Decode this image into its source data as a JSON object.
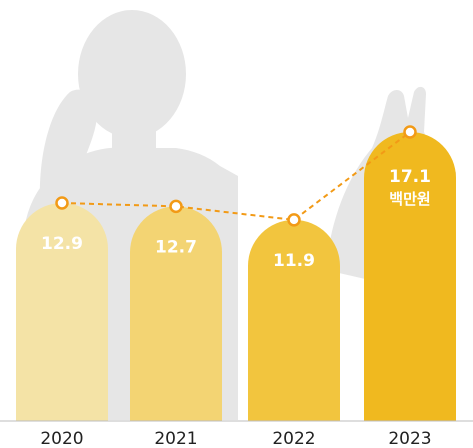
{
  "chart_data": {
    "type": "bar",
    "categories": [
      "2020",
      "2021",
      "2022",
      "2023"
    ],
    "values": [
      12.9,
      12.7,
      11.9,
      17.1
    ],
    "value_labels": [
      "12.9",
      "12.7",
      "11.9",
      "17.1"
    ],
    "unit_label": "백만원",
    "unit_label_on_category": "2023",
    "overlay": "line-with-markers",
    "ylim": [
      0,
      18
    ],
    "grid": false,
    "legend": "none",
    "title": "",
    "xlabel": "",
    "ylabel": ""
  },
  "colors": {
    "bars": [
      "#f4e3a6",
      "#f3d473",
      "#f2c53e",
      "#f0b91f"
    ],
    "line": "#f29a16",
    "marker_fill": "#ffffff",
    "text_on_bar": "#ffffff",
    "axis_text": "#222222",
    "baseline": "#bdbdbd",
    "background_silhouette": "#e6e6e6"
  },
  "decor": {
    "background": "person-silhouette"
  }
}
